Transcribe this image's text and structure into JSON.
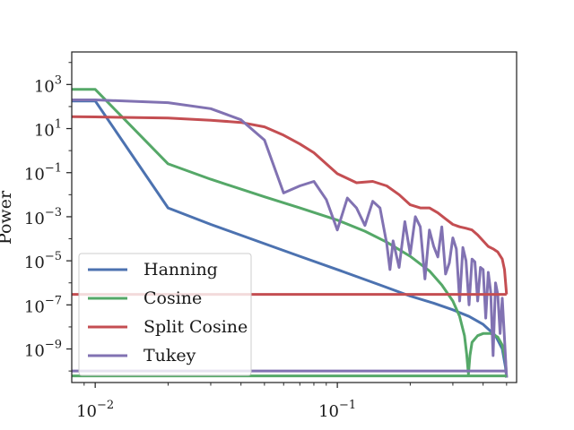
{
  "chart_data": {
    "type": "line",
    "title": "",
    "xlabel": "",
    "ylabel": "Power",
    "xscale": "log",
    "yscale": "log",
    "xlim": [
      0.008,
      0.55
    ],
    "ylim": [
      3e-11,
      30000
    ],
    "grid": false,
    "legend_position": "lower-left",
    "x_ticks": [
      {
        "value": 0.01,
        "base": "10",
        "exp": "−2"
      },
      {
        "value": 0.1,
        "base": "10",
        "exp": "−1"
      }
    ],
    "y_ticks": [
      {
        "value": 1000,
        "base": "10",
        "exp": "3"
      },
      {
        "value": 10,
        "base": "10",
        "exp": "1"
      },
      {
        "value": 0.1,
        "base": "10",
        "exp": "−1"
      },
      {
        "value": 0.001,
        "base": "10",
        "exp": "−3"
      },
      {
        "value": 1e-05,
        "base": "10",
        "exp": "−5"
      },
      {
        "value": 1e-07,
        "base": "10",
        "exp": "−7"
      },
      {
        "value": 1e-09,
        "base": "10",
        "exp": "−9"
      }
    ],
    "series": [
      {
        "name": "Hanning",
        "color": "#4c72b0",
        "points": [
          [
            0.008,
            180
          ],
          [
            0.01,
            180
          ],
          [
            0.02,
            0.0025
          ],
          [
            0.03,
            0.00045
          ],
          [
            0.05,
            6e-05
          ],
          [
            0.07,
            1.6e-05
          ],
          [
            0.1,
            4e-06
          ],
          [
            0.15,
            8e-07
          ],
          [
            0.2,
            2.5e-07
          ],
          [
            0.25,
            1.2e-07
          ],
          [
            0.3,
            6e-08
          ],
          [
            0.35,
            3e-08
          ],
          [
            0.4,
            1.3e-08
          ],
          [
            0.45,
            4e-09
          ],
          [
            0.48,
            1e-09
          ],
          [
            0.495,
            1.5e-10
          ],
          [
            0.5,
            5e-11
          ]
        ]
      },
      {
        "name": "Cosine",
        "color": "#55a868",
        "points": [
          [
            0.008,
            600
          ],
          [
            0.01,
            600
          ],
          [
            0.02,
            0.25
          ],
          [
            0.03,
            0.05
          ],
          [
            0.05,
            0.008
          ],
          [
            0.07,
            0.0025
          ],
          [
            0.1,
            0.0007
          ],
          [
            0.13,
            0.00022
          ],
          [
            0.16,
            7e-05
          ],
          [
            0.2,
            1.6e-05
          ],
          [
            0.24,
            3.5e-06
          ],
          [
            0.27,
            8e-07
          ],
          [
            0.3,
            1.5e-07
          ],
          [
            0.32,
            3e-08
          ],
          [
            0.335,
            4e-09
          ],
          [
            0.342,
            6e-10
          ],
          [
            0.348,
            7e-11
          ],
          [
            0.353,
            5e-10
          ],
          [
            0.36,
            2e-09
          ],
          [
            0.38,
            4e-09
          ],
          [
            0.4,
            5e-09
          ],
          [
            0.43,
            5e-09
          ],
          [
            0.46,
            3.5e-09
          ],
          [
            0.48,
            1.5e-09
          ],
          [
            0.495,
            3e-10
          ],
          [
            0.5,
            5e-11
          ]
        ]
      },
      {
        "name": "Split Cosine",
        "color": "#c44e52",
        "points": [
          [
            0.008,
            35
          ],
          [
            0.01,
            34
          ],
          [
            0.02,
            30
          ],
          [
            0.03,
            24
          ],
          [
            0.04,
            19
          ],
          [
            0.05,
            12
          ],
          [
            0.06,
            5
          ],
          [
            0.07,
            2
          ],
          [
            0.08,
            0.8
          ],
          [
            0.09,
            0.25
          ],
          [
            0.1,
            0.09
          ],
          [
            0.12,
            0.035
          ],
          [
            0.14,
            0.04
          ],
          [
            0.16,
            0.025
          ],
          [
            0.18,
            0.01
          ],
          [
            0.2,
            0.0035
          ],
          [
            0.22,
            0.0025
          ],
          [
            0.24,
            0.0025
          ],
          [
            0.26,
            0.0015
          ],
          [
            0.28,
            0.0008
          ],
          [
            0.3,
            0.00045
          ],
          [
            0.32,
            0.00035
          ],
          [
            0.34,
            0.0003
          ],
          [
            0.36,
            0.00025
          ],
          [
            0.38,
            0.00015
          ],
          [
            0.4,
            8e-05
          ],
          [
            0.42,
            4.5e-05
          ],
          [
            0.44,
            3.5e-05
          ],
          [
            0.46,
            2.5e-05
          ],
          [
            0.48,
            1.2e-05
          ],
          [
            0.49,
            4e-06
          ],
          [
            0.5,
            3e-07
          ]
        ]
      },
      {
        "name": "Tukey",
        "color": "#8172b2",
        "points": [
          [
            0.008,
            200
          ],
          [
            0.01,
            200
          ],
          [
            0.02,
            150
          ],
          [
            0.03,
            80
          ],
          [
            0.04,
            25
          ],
          [
            0.05,
            3
          ],
          [
            0.06,
            0.012
          ],
          [
            0.07,
            0.025
          ],
          [
            0.08,
            0.04
          ],
          [
            0.09,
            0.006
          ],
          [
            0.1,
            0.00025
          ],
          [
            0.11,
            0.007
          ],
          [
            0.12,
            0.0025
          ],
          [
            0.13,
            0.0004
          ],
          [
            0.14,
            0.005
          ],
          [
            0.15,
            0.0025
          ],
          [
            0.16,
            6e-05
          ],
          [
            0.165,
            4e-06
          ],
          [
            0.17,
            8e-05
          ],
          [
            0.18,
            5e-06
          ],
          [
            0.19,
            0.0006
          ],
          [
            0.2,
            2e-05
          ],
          [
            0.21,
            0.001
          ],
          [
            0.22,
            0.00035
          ],
          [
            0.23,
            1.5e-06
          ],
          [
            0.24,
            0.00025
          ],
          [
            0.25,
            4.5e-05
          ],
          [
            0.26,
            1.5e-05
          ],
          [
            0.27,
            0.00035
          ],
          [
            0.28,
            2.5e-06
          ],
          [
            0.29,
            8e-06
          ],
          [
            0.3,
            0.00011
          ],
          [
            0.31,
            3.5e-05
          ],
          [
            0.32,
            1.5e-07
          ],
          [
            0.33,
            4e-05
          ],
          [
            0.34,
            1e-05
          ],
          [
            0.35,
            1e-07
          ],
          [
            0.36,
            1.2e-05
          ],
          [
            0.37,
            9e-06
          ],
          [
            0.38,
            1.5e-07
          ],
          [
            0.39,
            5e-06
          ],
          [
            0.4,
            4e-06
          ],
          [
            0.41,
            2.5e-08
          ],
          [
            0.42,
            3e-06
          ],
          [
            0.43,
            4e-07
          ],
          [
            0.44,
            5e-10
          ],
          [
            0.45,
            1e-06
          ],
          [
            0.46,
            3e-07
          ],
          [
            0.47,
            5e-09
          ],
          [
            0.48,
            2e-07
          ],
          [
            0.49,
            3e-09
          ],
          [
            0.5,
            5e-11
          ]
        ]
      },
      {
        "name": "",
        "color": "#c44e52",
        "points": [
          [
            0.008,
            3e-07
          ],
          [
            0.5,
            3e-07
          ]
        ]
      },
      {
        "name": "",
        "color": "#8172b2",
        "points": [
          [
            0.008,
            1e-10
          ],
          [
            0.5,
            1e-10
          ]
        ]
      },
      {
        "name": "",
        "color": "#55a868",
        "points": [
          [
            0.008,
            6e-11
          ],
          [
            0.5,
            6e-11
          ]
        ]
      }
    ]
  }
}
